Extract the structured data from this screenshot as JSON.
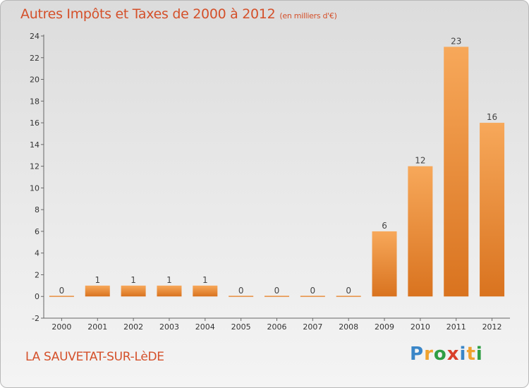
{
  "title": "Autres Impôts et Taxes de 2000 à 2012",
  "subtitle": "(en milliers d'€)",
  "commune": "LA SAUVETAT-SUR-LèDE",
  "logo": {
    "letters": [
      "P",
      "r",
      "o",
      "x",
      "i",
      "t",
      "i"
    ],
    "colors": [
      "#3a86c8",
      "#f0a22e",
      "#2f9e44",
      "#d9402a",
      "#3a86c8",
      "#f0a22e",
      "#2f9e44"
    ]
  },
  "colors": {
    "bar_light": "#f7a85a",
    "bar_dark": "#d9731f",
    "text_accent": "#d4502a"
  },
  "chart_data": {
    "type": "bar",
    "categories": [
      "2000",
      "2001",
      "2002",
      "2003",
      "2004",
      "2005",
      "2006",
      "2007",
      "2008",
      "2009",
      "2010",
      "2011",
      "2012"
    ],
    "values": [
      0,
      1,
      1,
      1,
      1,
      0,
      0,
      0,
      0,
      6,
      12,
      23,
      16
    ],
    "data_labels": [
      "0",
      "1",
      "1",
      "1",
      "1",
      "0",
      "0",
      "0",
      "0",
      "6",
      "12",
      "23",
      "16"
    ],
    "ylim": [
      -2,
      24
    ],
    "yticks": [
      -2,
      0,
      2,
      4,
      6,
      8,
      10,
      12,
      14,
      16,
      18,
      20,
      22,
      24
    ],
    "grid": false
  }
}
